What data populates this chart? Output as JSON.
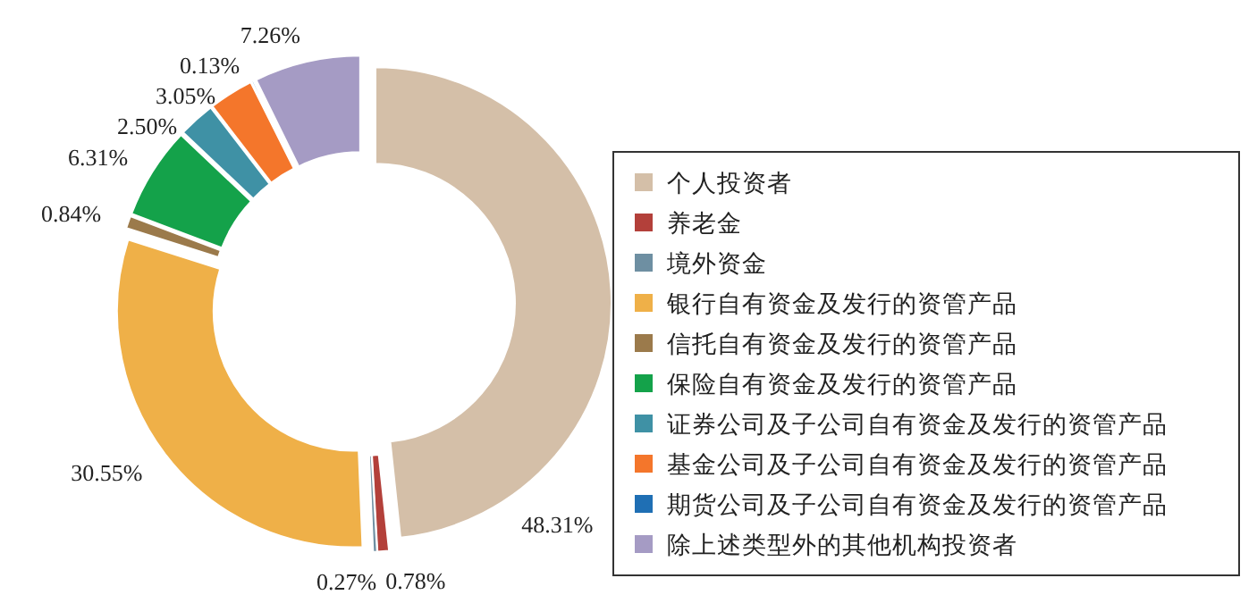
{
  "chart_data": {
    "type": "donut",
    "categories": [
      "个人投资者",
      "养老金",
      "境外资金",
      "银行自有资金及发行的资管产品",
      "信托自有资金及发行的资管产品",
      "保险自有资金及发行的资管产品",
      "证券公司及子公司自有资金及发行的资管产品",
      "基金公司及子公司自有资金及发行的资管产品",
      "期货公司及子公司自有资金及发行的资管产品",
      "除上述类型外的其他机构投资者"
    ],
    "values": [
      48.31,
      0.78,
      0.27,
      30.55,
      0.84,
      6.31,
      2.5,
      3.05,
      0.13,
      7.26
    ],
    "colors": [
      "#d4bfa8",
      "#b3403a",
      "#6e8fa2",
      "#efb048",
      "#9b7a4b",
      "#14a24a",
      "#3f91a5",
      "#f4762b",
      "#1f6fb4",
      "#a59bc4"
    ],
    "value_labels": [
      "48.31%",
      "0.78%",
      "0.27%",
      "30.55%",
      "0.84%",
      "6.31%",
      "2.50%",
      "3.05%",
      "0.13%",
      "7.26%"
    ],
    "legend": "right"
  }
}
